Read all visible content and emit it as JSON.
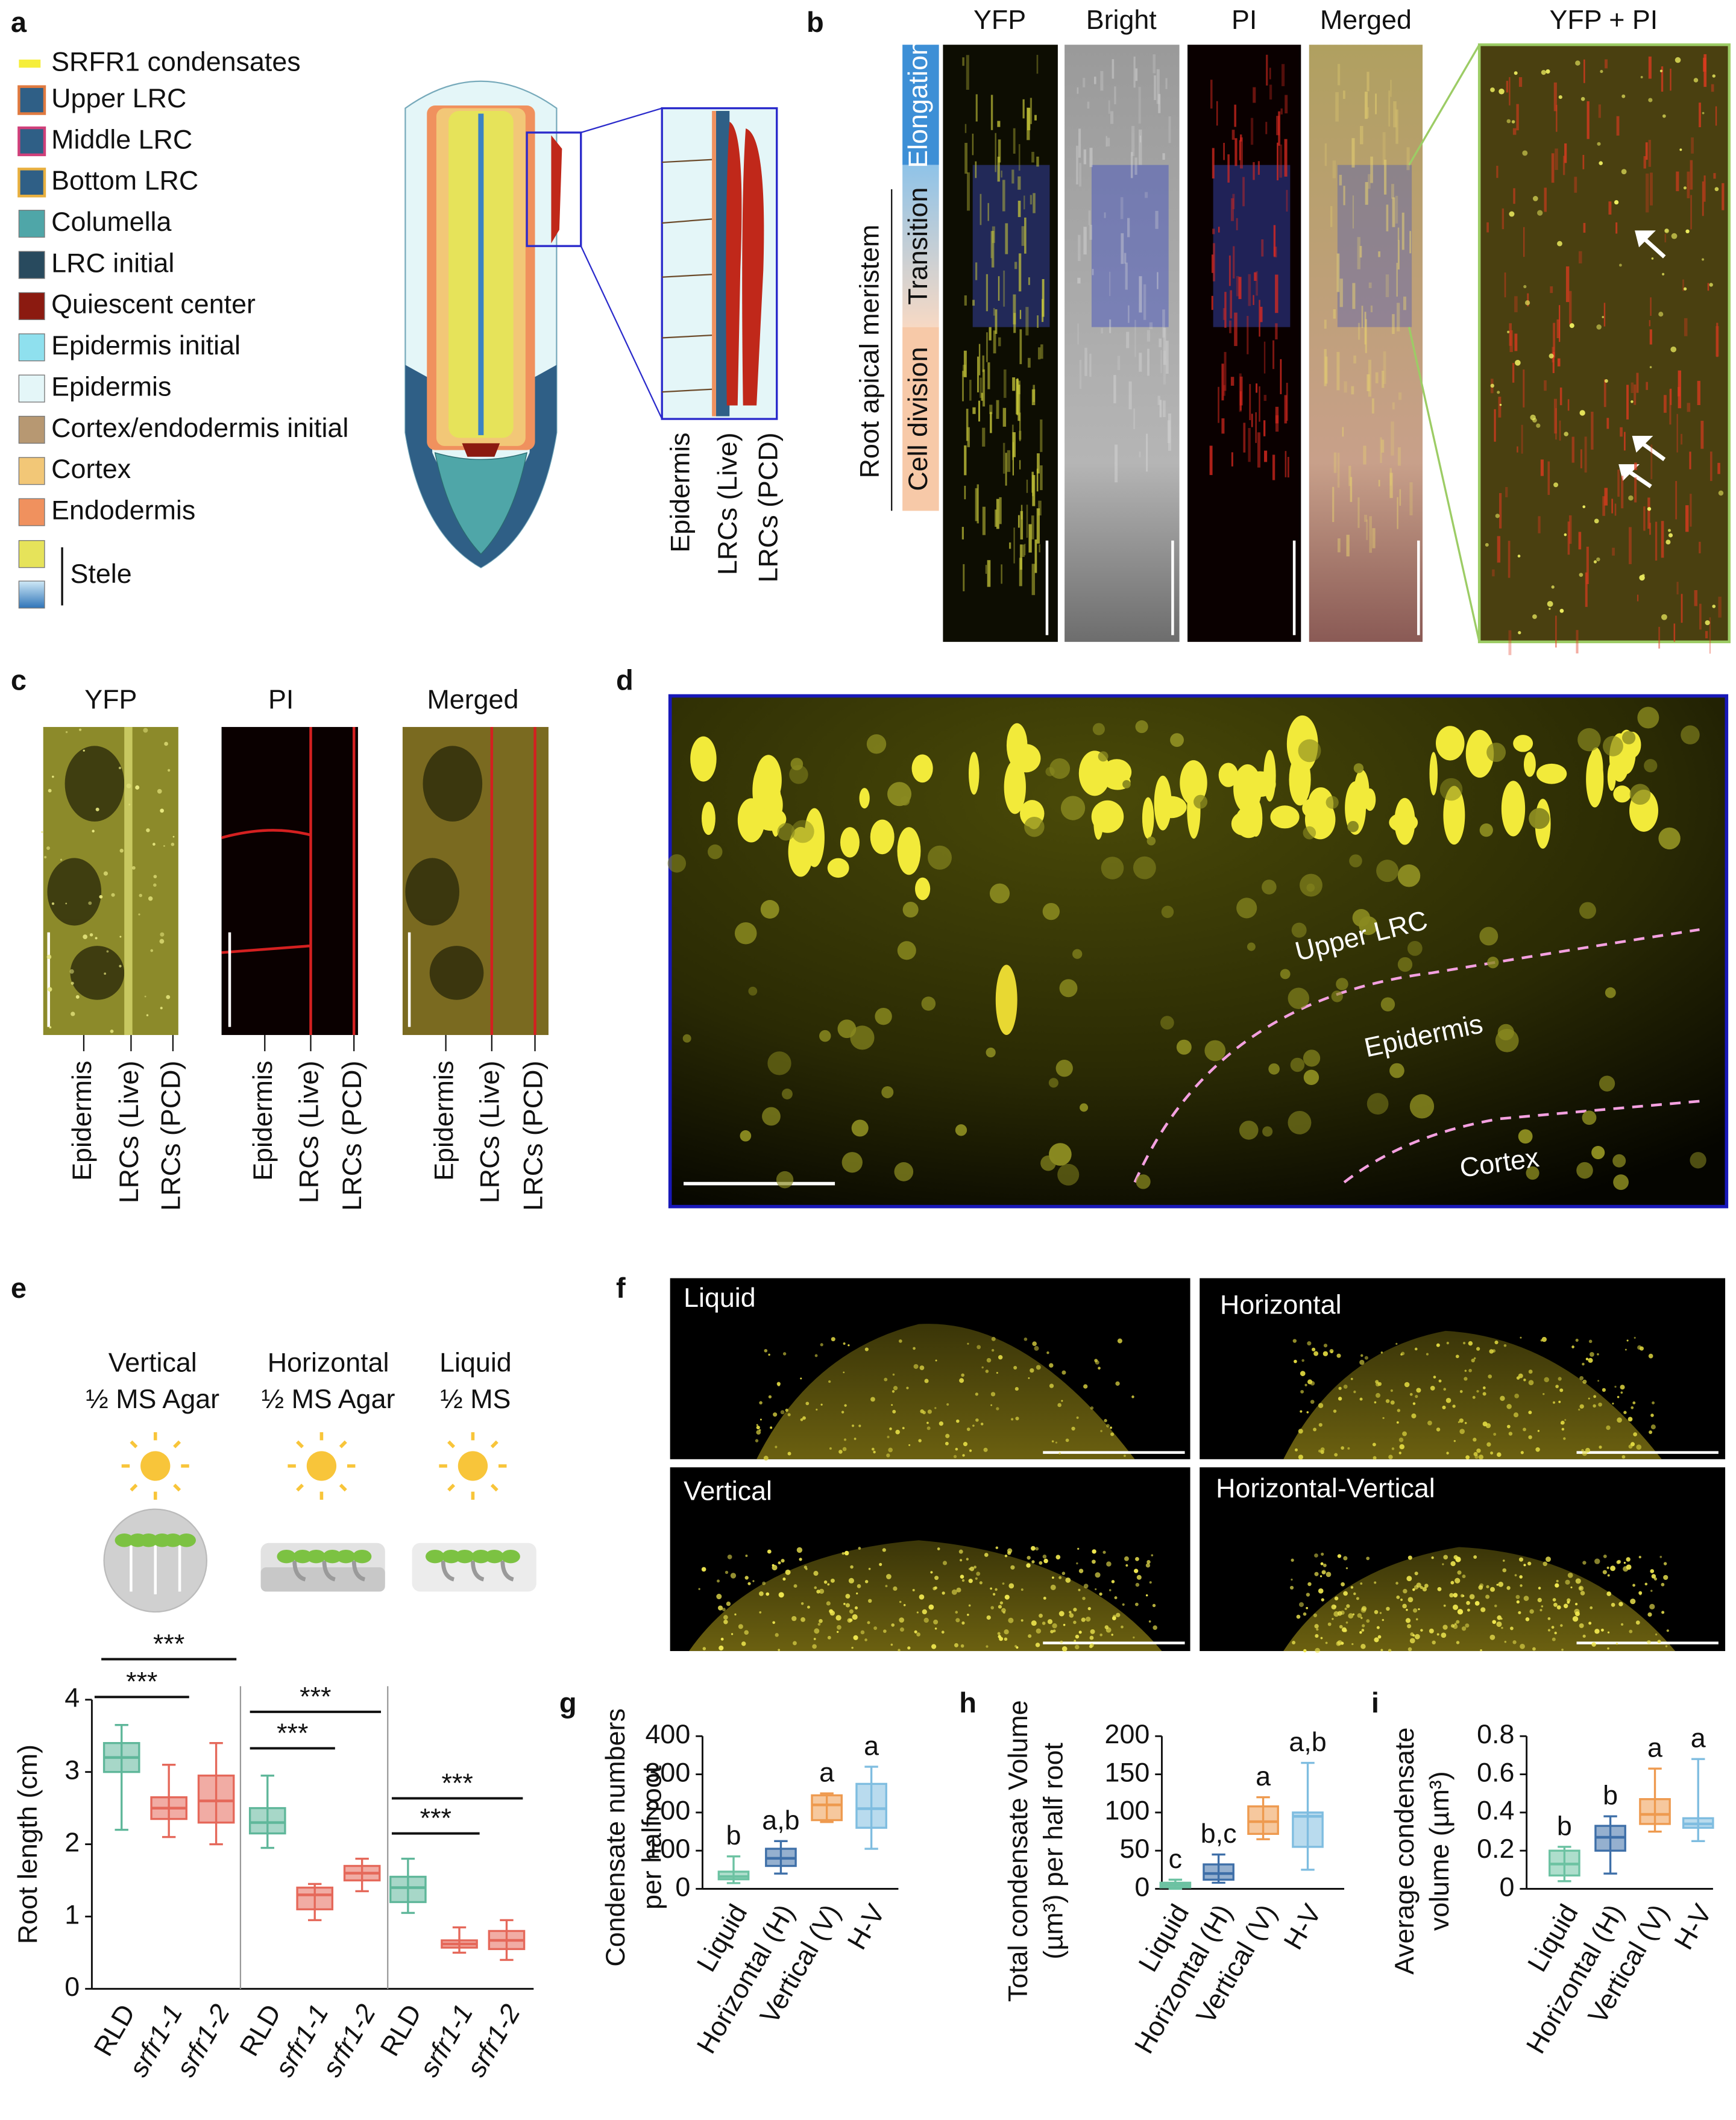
{
  "panels": {
    "a": {
      "letter": "a",
      "legend": [
        {
          "label": "SRFR1 condensates",
          "color": "#f5ee3a"
        },
        {
          "label": "Upper LRC",
          "color": "#2f5f86"
        },
        {
          "label": "Middle LRC",
          "color": "#2f5f86"
        },
        {
          "label": "Bottom LRC",
          "color": "#2f5f86"
        },
        {
          "label": "Columella",
          "color": "#4fa6a8"
        },
        {
          "label": "LRC initial",
          "color": "#284a5e"
        },
        {
          "label": "Quiescent center",
          "color": "#8b1a10"
        },
        {
          "label": "Epidermis initial",
          "color": "#8fe0ee"
        },
        {
          "label": "Epidermis",
          "color": "#e4f6f8"
        },
        {
          "label": "Cortex/endodermis initial",
          "color": "#b79872"
        },
        {
          "label": "Cortex",
          "color": "#f2c777"
        },
        {
          "label": "Endodermis",
          "color": "#f0915e"
        }
      ],
      "stele": {
        "label": "Stele",
        "colors": [
          "#e6e35a",
          "#3b82c4"
        ]
      },
      "inset_labels": [
        "Epidermis",
        "LRCs (Live)",
        "LRCs (PCD)"
      ]
    },
    "b": {
      "letter": "b",
      "channels": [
        "YFP",
        "Bright",
        "PI",
        "Merged"
      ],
      "zoom_title": "YFP + PI",
      "zones": [
        "Elongation",
        "Transition",
        "Cell division"
      ],
      "region": "Root apical meristem"
    },
    "c": {
      "letter": "c",
      "channels": [
        "YFP",
        "PI",
        "Merged"
      ],
      "layers": [
        "Epidermis",
        "LRCs (Live)",
        "LRCs (PCD)"
      ]
    },
    "d": {
      "letter": "d",
      "layers": [
        "Upper LRC",
        "Epidermis",
        "Cortex"
      ]
    },
    "e": {
      "letter": "e",
      "conditions": [
        [
          "Vertical",
          "½ MS Agar"
        ],
        [
          "Horizontal",
          "½ MS Agar"
        ],
        [
          "Liquid",
          "½ MS"
        ]
      ]
    },
    "f": {
      "letter": "f",
      "conditions": [
        "Liquid",
        "Horizontal",
        "Vertical",
        "Horizontal-Vertical"
      ]
    }
  },
  "chart_data": [
    {
      "type": "box",
      "ylabel": "Root length (cm)",
      "ylim": [
        0,
        4
      ],
      "yticks": [
        0,
        1,
        2,
        3,
        4
      ],
      "categories": [
        "RLD",
        "srfr1-1",
        "srfr1-2",
        "RLD",
        "srfr1-1",
        "srfr1-2",
        "RLD",
        "srfr1-1",
        "srfr1-2"
      ],
      "colors": [
        "#5fb79a",
        "#e5685a",
        "#e5685a",
        "#5fb79a",
        "#e5685a",
        "#e5685a",
        "#5fb79a",
        "#e5685a",
        "#e5685a"
      ],
      "boxes": [
        {
          "min": 2.2,
          "q1": 3.0,
          "median": 3.2,
          "q3": 3.4,
          "max": 3.65
        },
        {
          "min": 2.1,
          "q1": 2.35,
          "median": 2.5,
          "q3": 2.65,
          "max": 3.1
        },
        {
          "min": 2.0,
          "q1": 2.3,
          "median": 2.6,
          "q3": 2.95,
          "max": 3.4
        },
        {
          "min": 1.95,
          "q1": 2.15,
          "median": 2.3,
          "q3": 2.5,
          "max": 2.95
        },
        {
          "min": 0.95,
          "q1": 1.1,
          "median": 1.3,
          "q3": 1.4,
          "max": 1.45
        },
        {
          "min": 1.35,
          "q1": 1.5,
          "median": 1.6,
          "q3": 1.7,
          "max": 1.8
        },
        {
          "min": 1.05,
          "q1": 1.2,
          "median": 1.4,
          "q3": 1.55,
          "max": 1.8
        },
        {
          "min": 0.5,
          "q1": 0.57,
          "median": 0.62,
          "q3": 0.67,
          "max": 0.85
        },
        {
          "min": 0.4,
          "q1": 0.55,
          "median": 0.67,
          "q3": 0.8,
          "max": 0.95
        }
      ],
      "significance": [
        "***",
        "***",
        "***",
        "***",
        "***",
        "***"
      ]
    },
    {
      "type": "box",
      "panel": "g",
      "ylabel": [
        "Condensate numbers",
        "per half root"
      ],
      "ylim": [
        0,
        400
      ],
      "yticks": [
        0,
        100,
        200,
        300,
        400
      ],
      "categories": [
        "Liquid",
        "Horizontal (H)",
        "Vertical (V)",
        "H-V"
      ],
      "colors": [
        "#6cc2a2",
        "#3e6fa8",
        "#ee9a4f",
        "#7fbde0"
      ],
      "boxes": [
        {
          "min": 15,
          "q1": 25,
          "median": 32,
          "q3": 45,
          "max": 85
        },
        {
          "min": 40,
          "q1": 60,
          "median": 80,
          "q3": 105,
          "max": 125
        },
        {
          "min": 175,
          "q1": 180,
          "median": 220,
          "q3": 245,
          "max": 250
        },
        {
          "min": 105,
          "q1": 160,
          "median": 210,
          "q3": 275,
          "max": 320
        }
      ],
      "letters": [
        "b",
        "a,b",
        "a",
        "a"
      ]
    },
    {
      "type": "box",
      "panel": "h",
      "ylabel": [
        "Total condensate Volume",
        "(µm³) per half root"
      ],
      "ylim": [
        0,
        200
      ],
      "yticks": [
        0,
        50,
        100,
        150,
        200
      ],
      "categories": [
        "Liquid",
        "Horizontal (H)",
        "Vertical (V)",
        "H-V"
      ],
      "colors": [
        "#6cc2a2",
        "#3e6fa8",
        "#ee9a4f",
        "#7fbde0"
      ],
      "boxes": [
        {
          "min": 0,
          "q1": 2,
          "median": 5,
          "q3": 8,
          "max": 12
        },
        {
          "min": 8,
          "q1": 12,
          "median": 20,
          "q3": 32,
          "max": 45
        },
        {
          "min": 65,
          "q1": 72,
          "median": 88,
          "q3": 108,
          "max": 120
        },
        {
          "min": 25,
          "q1": 55,
          "median": 95,
          "q3": 100,
          "max": 165
        }
      ],
      "letters": [
        "c",
        "b,c",
        "a",
        "a,b"
      ]
    },
    {
      "type": "box",
      "panel": "i",
      "ylabel": [
        "Average condensate",
        "volume (µm³)"
      ],
      "ylim": [
        0,
        0.8
      ],
      "yticks": [
        0,
        0.2,
        0.4,
        0.6,
        0.8
      ],
      "categories": [
        "Liquid",
        "Horizontal (H)",
        "Vertical (V)",
        "H-V"
      ],
      "colors": [
        "#6cc2a2",
        "#3e6fa8",
        "#ee9a4f",
        "#7fbde0"
      ],
      "boxes": [
        {
          "min": 0.04,
          "q1": 0.07,
          "median": 0.13,
          "q3": 0.2,
          "max": 0.22
        },
        {
          "min": 0.08,
          "q1": 0.2,
          "median": 0.27,
          "q3": 0.33,
          "max": 0.38
        },
        {
          "min": 0.3,
          "q1": 0.34,
          "median": 0.39,
          "q3": 0.47,
          "max": 0.63
        },
        {
          "min": 0.25,
          "q1": 0.32,
          "median": 0.34,
          "q3": 0.37,
          "max": 0.68
        }
      ],
      "letters": [
        "b",
        "b",
        "a",
        "a"
      ]
    }
  ]
}
